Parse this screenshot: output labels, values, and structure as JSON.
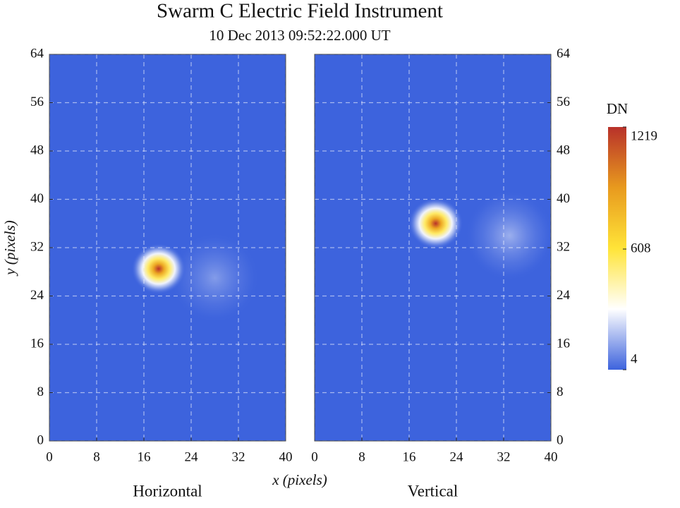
{
  "chart_data": {
    "type": "heatmap",
    "title": "Swarm C Electric Field Instrument",
    "subtitle": "10 Dec 2013 09:52:22.000 UT",
    "xlabel": "x (pixels)",
    "ylabel": "y (pixels)",
    "xlim": [
      0,
      40
    ],
    "ylim": [
      0,
      64
    ],
    "xticks": [
      0,
      8,
      16,
      24,
      32,
      40
    ],
    "yticks": [
      0,
      8,
      16,
      24,
      32,
      40,
      48,
      56,
      64
    ],
    "grid": true,
    "colormap": [
      "#3d63dd",
      "#ffffff",
      "#ffe438",
      "#e89a1e",
      "#b8312a"
    ],
    "colorbar": {
      "label": "DN",
      "lim": [
        4,
        1219
      ],
      "ticks": [
        4,
        608,
        1219
      ]
    },
    "panels": [
      {
        "name": "Horizontal",
        "spots": [
          {
            "x": 28,
            "y": 27,
            "value": 150
          },
          {
            "x": 18.5,
            "y": 28.5,
            "value": 1219
          }
        ]
      },
      {
        "name": "Vertical",
        "spots": [
          {
            "x": 33,
            "y": 34,
            "value": 200
          },
          {
            "x": 20.5,
            "y": 36,
            "value": 1219
          }
        ]
      }
    ]
  }
}
